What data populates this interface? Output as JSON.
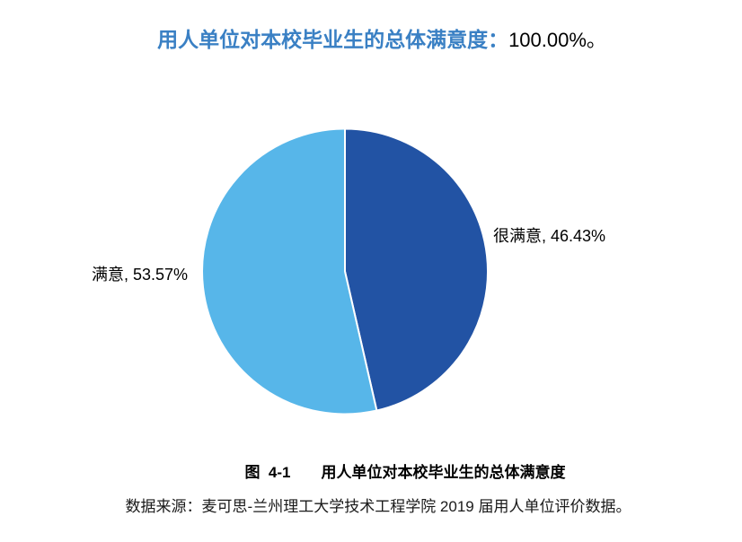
{
  "page": {
    "title": {
      "label": "用人单位对本校毕业生的总体满意度：",
      "value": "100.00%。"
    },
    "caption": {
      "figure_no": "图  4-1",
      "text": "用人单位对本校毕业生的总体满意度"
    },
    "source": "数据来源：麦可思-兰州理工大学技术工程学院 2019 届用人单位评价数据。"
  },
  "colors": {
    "title_text": "#3a80c4",
    "body_text": "#000000",
    "background": "#ffffff",
    "slice_divider": "#ffffff"
  },
  "chart_data": {
    "type": "pie",
    "title": "用人单位对本校毕业生的总体满意度：100.00%。",
    "total": 100,
    "unit": "%",
    "start_angle_deg": 0,
    "direction": "clockwise",
    "legend_position": "none",
    "labels_position": "outside",
    "slices": [
      {
        "name": "很满意",
        "value": 46.43,
        "color": "#2253a4",
        "label": "很满意, 46.43%"
      },
      {
        "name": "满意",
        "value": 53.57,
        "color": "#57b6e9",
        "label": "满意, 53.57%"
      }
    ]
  }
}
